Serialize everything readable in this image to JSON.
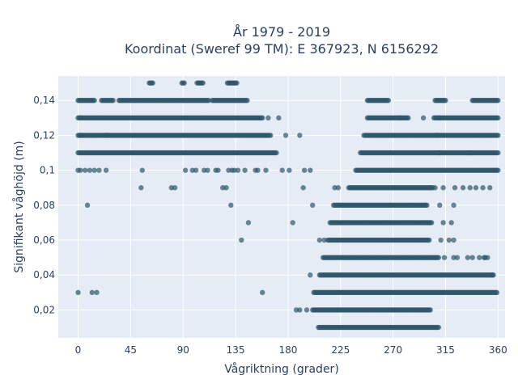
{
  "chart_data": {
    "type": "scatter",
    "title_line1": "År 1979 - 2019",
    "title_line2": "Koordinat (Sweref 99 TM): E 367923, N 6156292",
    "xlabel": "Vågriktning (grader)",
    "ylabel": "Signifikant våghöjd (m)",
    "xlim": [
      -17,
      366
    ],
    "ylim": [
      0.004,
      0.154
    ],
    "x_ticks": [
      0,
      45,
      90,
      135,
      180,
      225,
      270,
      315,
      360
    ],
    "x_tick_labels": [
      "0",
      "45",
      "90",
      "135",
      "180",
      "225",
      "270",
      "315",
      "360"
    ],
    "y_ticks": [
      0.02,
      0.04,
      0.06,
      0.08,
      0.1,
      0.12,
      0.14
    ],
    "y_tick_labels": [
      "0,02",
      "0,04",
      "0,06",
      "0,08",
      "0,1",
      "0,12",
      "0,14"
    ],
    "grid": true,
    "marker_color": "#2f5569",
    "plot_background": "#e5ecf6",
    "series": [
      {
        "values": {
          "bands": [
            {
              "y": 0.01,
              "ranges": [
                [
                  206,
                  309
                ]
              ]
            },
            {
              "y": 0.02,
              "ranges": [
                [
                  201,
                  302
                ]
              ]
            },
            {
              "y": 0.03,
              "ranges": [
                [
                  202,
                  359
                ]
              ]
            },
            {
              "y": 0.04,
              "ranges": [
                [
                  207,
                  356
                ]
              ]
            },
            {
              "y": 0.05,
              "ranges": [
                [
                  210,
                  309
                ]
              ]
            },
            {
              "y": 0.06,
              "ranges": [
                [
                  214,
                  301
                ]
              ]
            },
            {
              "y": 0.07,
              "ranges": [
                [
                  216,
                  303
                ]
              ]
            },
            {
              "y": 0.08,
              "ranges": [
                [
                  219,
                  299
                ]
              ]
            },
            {
              "y": 0.09,
              "ranges": [
                [
                  232,
                  304
                ]
              ]
            },
            {
              "y": 0.1,
              "ranges": [
                [
                  238,
                  360
                ]
              ]
            },
            {
              "y": 0.11,
              "ranges": [
                [
                  0,
                  170
                ],
                [
                  242,
                  360
                ]
              ]
            },
            {
              "y": 0.12,
              "ranges": [
                [
                  0,
                  165
                ],
                [
                  245,
                  360
                ]
              ]
            },
            {
              "y": 0.13,
              "ranges": [
                [
                  0,
                  158
                ],
                [
                  248,
                  283
                ],
                [
                  305,
                  360
                ]
              ]
            },
            {
              "y": 0.14,
              "ranges": [
                [
                  0,
                  14
                ],
                [
                  20,
                  30
                ],
                [
                  35,
                  112
                ],
                [
                  115,
                  145
                ],
                [
                  248,
                  266
                ],
                [
                  306,
                  315
                ],
                [
                  338,
                  360
                ]
              ]
            },
            {
              "y": 0.15,
              "ranges": [
                [
                  61,
                  64
                ],
                [
                  89,
                  91
                ],
                [
                  102,
                  107
                ],
                [
                  128,
                  136
                ]
              ]
            }
          ],
          "points": [
            [
              0,
              0.1
            ],
            [
              2,
              0.1
            ],
            [
              6,
              0.1
            ],
            [
              10,
              0.1
            ],
            [
              14,
              0.1
            ],
            [
              18,
              0.1
            ],
            [
              24,
              0.1
            ],
            [
              55,
              0.1
            ],
            [
              92,
              0.1
            ],
            [
              98,
              0.1
            ],
            [
              101,
              0.1
            ],
            [
              108,
              0.1
            ],
            [
              111,
              0.1
            ],
            [
              118,
              0.1
            ],
            [
              120,
              0.1
            ],
            [
              129,
              0.1
            ],
            [
              132,
              0.1
            ],
            [
              134,
              0.1
            ],
            [
              137,
              0.1
            ],
            [
              143,
              0.1
            ],
            [
              152,
              0.1
            ],
            [
              154,
              0.1
            ],
            [
              161,
              0.1
            ],
            [
              175,
              0.1
            ],
            [
              181,
              0.1
            ],
            [
              194,
              0.1
            ],
            [
              199,
              0.1
            ],
            [
              54,
              0.09
            ],
            [
              80,
              0.09
            ],
            [
              83,
              0.09
            ],
            [
              124,
              0.09
            ],
            [
              127,
              0.09
            ],
            [
              193,
              0.09
            ],
            [
              220,
              0.09
            ],
            [
              223,
              0.09
            ],
            [
              306,
              0.09
            ],
            [
              313,
              0.09
            ],
            [
              323,
              0.09
            ],
            [
              330,
              0.09
            ],
            [
              336,
              0.09
            ],
            [
              341,
              0.09
            ],
            [
              347,
              0.09
            ],
            [
              353,
              0.09
            ],
            [
              8,
              0.08
            ],
            [
              131,
              0.08
            ],
            [
              201,
              0.08
            ],
            [
              310,
              0.08
            ],
            [
              322,
              0.08
            ],
            [
              146,
              0.07
            ],
            [
              184,
              0.07
            ],
            [
              313,
              0.07
            ],
            [
              320,
              0.07
            ],
            [
              140,
              0.06
            ],
            [
              207,
              0.06
            ],
            [
              211,
              0.06
            ],
            [
              311,
              0.06
            ],
            [
              318,
              0.06
            ],
            [
              322,
              0.06
            ],
            [
              314,
              0.05
            ],
            [
              322,
              0.05
            ],
            [
              325,
              0.05
            ],
            [
              334,
              0.05
            ],
            [
              338,
              0.05
            ],
            [
              344,
              0.05
            ],
            [
              348,
              0.05
            ],
            [
              349,
              0.05
            ],
            [
              351,
              0.05
            ],
            [
              199,
              0.04
            ],
            [
              355,
              0.04
            ],
            [
              0,
              0.03
            ],
            [
              12,
              0.03
            ],
            [
              16,
              0.03
            ],
            [
              158,
              0.03
            ],
            [
              187,
              0.02
            ],
            [
              190,
              0.02
            ],
            [
              196,
              0.02
            ],
            [
              2,
              0.12
            ],
            [
              25,
              0.12
            ],
            [
              178,
              0.12
            ],
            [
              190,
              0.12
            ],
            [
              2,
              0.13
            ],
            [
              163,
              0.13
            ],
            [
              172,
              0.13
            ],
            [
              276,
              0.13
            ],
            [
              296,
              0.13
            ],
            [
              310,
              0.13
            ],
            [
              308,
              0.12
            ],
            [
              310,
              0.11
            ],
            [
              335,
              0.11
            ]
          ]
        }
      }
    ]
  }
}
